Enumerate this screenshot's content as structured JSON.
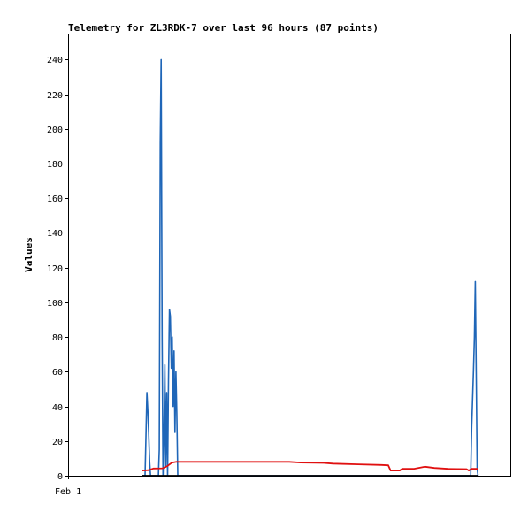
{
  "chart_data": {
    "type": "line",
    "title": "Telemetry for ZL3RDK-7 over last 96 hours (87 points)",
    "ylabel": "Values",
    "xlabel": "",
    "ylim": [
      0,
      255
    ],
    "xlim": [
      0,
      96
    ],
    "y_ticks": [
      0,
      20,
      40,
      60,
      80,
      100,
      120,
      140,
      160,
      180,
      200,
      220,
      240
    ],
    "x_ticks": [
      {
        "x": 0,
        "label": "Feb 1"
      }
    ],
    "legend": "none",
    "grid": false,
    "series": [
      {
        "color": "#1f66b8",
        "points": [
          [
            16.0,
            0
          ],
          [
            16.7,
            0
          ],
          [
            16.9,
            22
          ],
          [
            17.1,
            48
          ],
          [
            17.3,
            38
          ],
          [
            17.5,
            25
          ],
          [
            17.7,
            8
          ],
          [
            17.9,
            0
          ],
          [
            19.6,
            0
          ],
          [
            19.8,
            15
          ],
          [
            20.0,
            192
          ],
          [
            20.2,
            240
          ],
          [
            20.4,
            80
          ],
          [
            20.6,
            0
          ],
          [
            20.8,
            20
          ],
          [
            21.0,
            64
          ],
          [
            21.2,
            5
          ],
          [
            21.4,
            48
          ],
          [
            21.6,
            0
          ],
          [
            21.8,
            55
          ],
          [
            22.0,
            96
          ],
          [
            22.2,
            92
          ],
          [
            22.4,
            62
          ],
          [
            22.6,
            80
          ],
          [
            22.8,
            40
          ],
          [
            23.0,
            72
          ],
          [
            23.2,
            25
          ],
          [
            23.4,
            60
          ],
          [
            23.6,
            36
          ],
          [
            23.8,
            0
          ],
          [
            87.4,
            0
          ],
          [
            87.6,
            28
          ],
          [
            87.8,
            44
          ],
          [
            88.0,
            60
          ],
          [
            88.2,
            80
          ],
          [
            88.4,
            112
          ],
          [
            88.6,
            56
          ],
          [
            88.8,
            4
          ],
          [
            89.0,
            0
          ]
        ]
      },
      {
        "color": "#e01010",
        "points": [
          [
            16.0,
            3.0
          ],
          [
            17.5,
            3.2
          ],
          [
            18.5,
            4.2
          ],
          [
            20.5,
            4.3
          ],
          [
            21.5,
            5.5
          ],
          [
            22.5,
            7.5
          ],
          [
            23.5,
            8.0
          ],
          [
            48.0,
            8.0
          ],
          [
            50.5,
            7.6
          ],
          [
            55.5,
            7.4
          ],
          [
            57.5,
            7.0
          ],
          [
            63.0,
            6.6
          ],
          [
            68.0,
            6.2
          ],
          [
            69.5,
            6.0
          ],
          [
            70.0,
            3.0
          ],
          [
            72.0,
            3.0
          ],
          [
            72.5,
            4.0
          ],
          [
            75.0,
            4.0
          ],
          [
            77.5,
            5.2
          ],
          [
            79.5,
            4.5
          ],
          [
            82.5,
            4.0
          ],
          [
            86.5,
            3.8
          ],
          [
            87.0,
            3.0
          ],
          [
            87.5,
            4.0
          ],
          [
            89.0,
            4.0
          ]
        ]
      },
      {
        "color": "#000000",
        "points": [
          [
            16.0,
            0
          ],
          [
            89.0,
            0
          ]
        ]
      }
    ]
  }
}
